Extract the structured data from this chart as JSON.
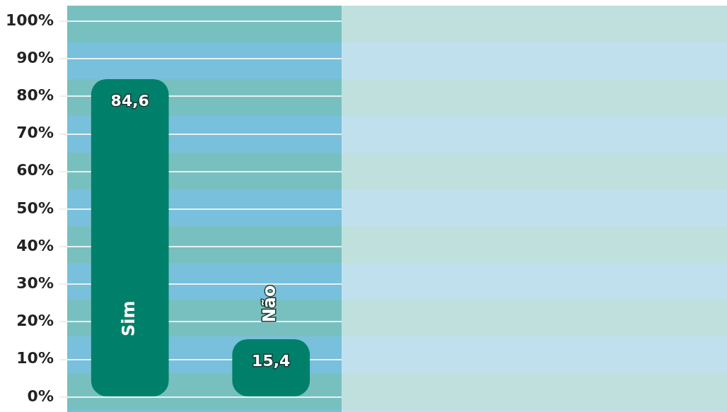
{
  "chart_data": {
    "type": "bar",
    "categories": [
      "Sim",
      "Não"
    ],
    "values": [
      84.6,
      15.4
    ],
    "color": "#00806a",
    "value_labels": [
      "84,6",
      "15,4"
    ],
    "ylim": [
      0,
      100
    ],
    "yticks": [
      {
        "value": 0,
        "label": "0%"
      },
      {
        "value": 10,
        "label": "10%"
      },
      {
        "value": 20,
        "label": "20%"
      },
      {
        "value": 30,
        "label": "30%"
      },
      {
        "value": 40,
        "label": "40%"
      },
      {
        "value": 50,
        "label": "50%"
      },
      {
        "value": 60,
        "label": "60%"
      },
      {
        "value": 70,
        "label": "70%"
      },
      {
        "value": 80,
        "label": "80%"
      },
      {
        "value": 90,
        "label": "90%"
      },
      {
        "value": 100,
        "label": "100%"
      }
    ],
    "grid": "y",
    "tick_labels": "y"
  }
}
